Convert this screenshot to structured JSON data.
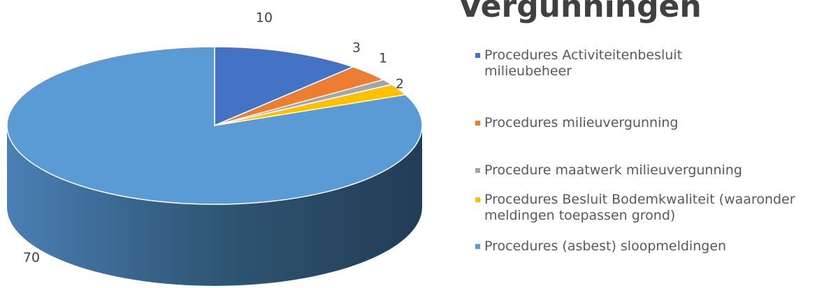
{
  "chart_data": {
    "type": "pie",
    "title": "Vergunningen",
    "categories": [
      "Procedures Activiteitenbesluit milieubeheer",
      "Procedures milieuvergunning",
      "Procedure maatwerk milieuvergunning",
      "Procedures Besluit Bodemkwaliteit (waaronder meldingen toepassen grond)",
      "Procedures (asbest) sloopmeldingen"
    ],
    "values": [
      10,
      3,
      1,
      2,
      70
    ],
    "colors": [
      "#4472c4",
      "#ed7d31",
      "#a5a5a5",
      "#ffc000",
      "#5b9bd5"
    ],
    "legend": "right",
    "three_d": true
  }
}
